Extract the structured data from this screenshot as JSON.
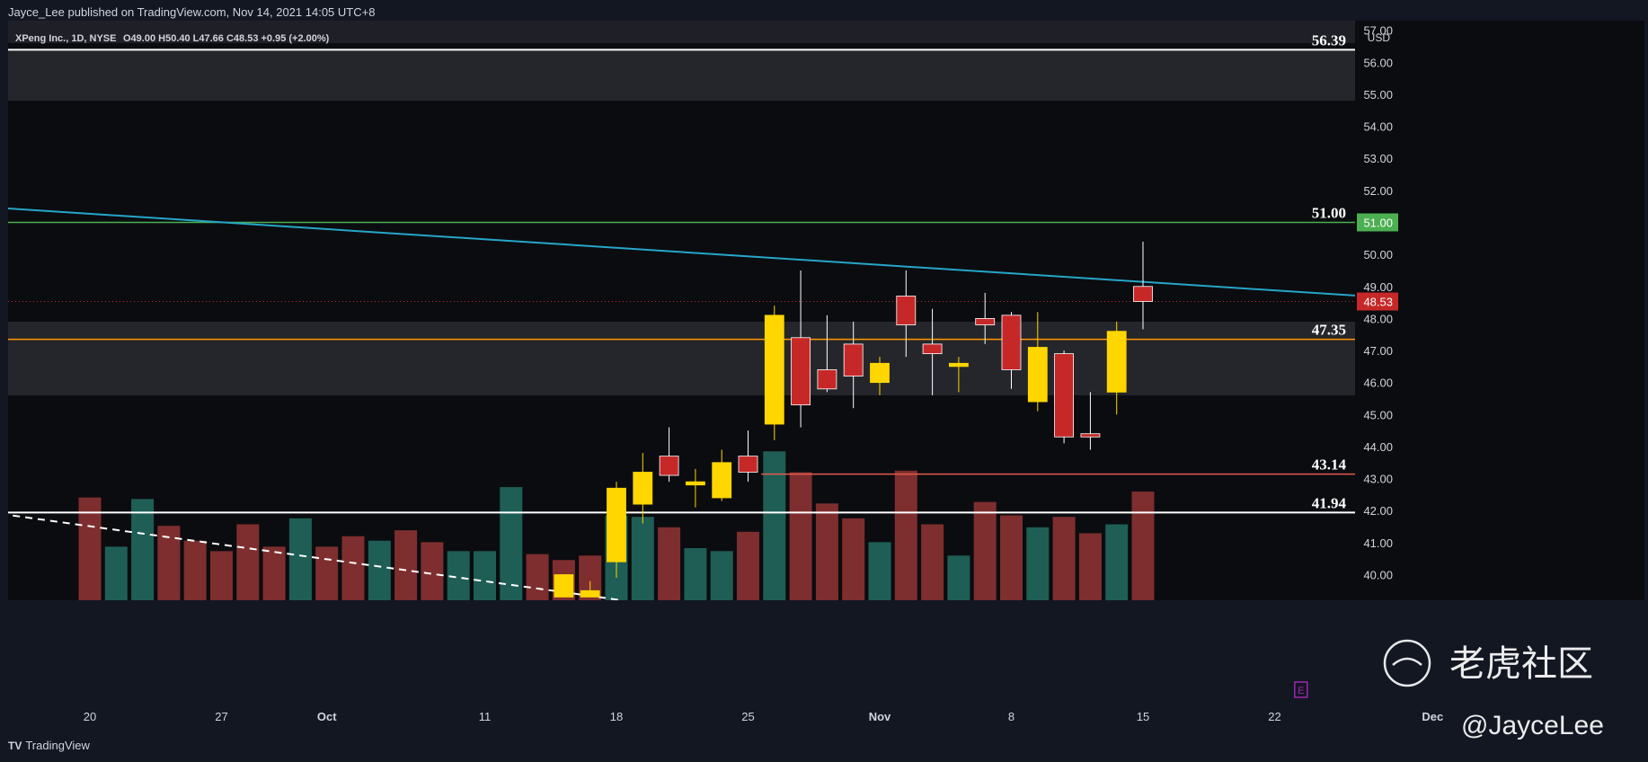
{
  "header": {
    "published": "Jayce_Lee published on TradingView.com, Nov 14, 2021 14:05 UTC+8"
  },
  "footer": {
    "brand": "TradingView",
    "logo_icon": "tradingview-logo-icon"
  },
  "colors": {
    "bull": "#ffd600",
    "bear": "#c62828",
    "vol_up": "#1e5e55",
    "vol_down": "#7e2e2e",
    "trend": "#26a6c8",
    "green_level": "#4caf50",
    "orange_level": "#ff9800",
    "red_level": "#e55b4d",
    "white_level": "#ffffff"
  },
  "watermark": {
    "brand": "老虎社区",
    "user": "@JayceLee"
  },
  "chart_data": {
    "type": "candlestick",
    "title": "XPeng Inc., 1D, NYSE",
    "ohlc_readout": "O49.00 H50.40 L47.66 C48.53 +0.95 (+2.00%)",
    "currency": "USD",
    "ylim": [
      39.2,
      57.3
    ],
    "y_ticks": [
      40,
      41,
      42,
      43,
      44,
      45,
      46,
      47,
      48,
      49,
      50,
      51,
      52,
      53,
      54,
      55,
      56,
      57
    ],
    "x_labels": [
      {
        "label": "20",
        "i": 0
      },
      {
        "label": "27",
        "i": 5
      },
      {
        "label": "Oct",
        "i": 9
      },
      {
        "label": "11",
        "i": 15
      },
      {
        "label": "18",
        "i": 20
      },
      {
        "label": "25",
        "i": 25
      },
      {
        "label": "Nov",
        "i": 30
      },
      {
        "label": "8",
        "i": 35
      },
      {
        "label": "15",
        "i": 40
      },
      {
        "label": "22",
        "i": 45
      },
      {
        "label": "Dec",
        "i": 51
      }
    ],
    "candles": [
      {
        "i": 20,
        "o": 40.4,
        "h": 42.9,
        "l": 39.9,
        "c": 42.7
      },
      {
        "i": 21,
        "o": 42.2,
        "h": 43.8,
        "l": 41.6,
        "c": 43.2
      },
      {
        "i": 22,
        "o": 43.7,
        "h": 44.6,
        "l": 42.9,
        "c": 43.1
      },
      {
        "i": 23,
        "o": 42.8,
        "h": 43.3,
        "l": 42.1,
        "c": 42.9
      },
      {
        "i": 24,
        "o": 42.4,
        "h": 43.9,
        "l": 42.3,
        "c": 43.5
      },
      {
        "i": 25,
        "o": 43.7,
        "h": 44.5,
        "l": 42.9,
        "c": 43.2
      },
      {
        "i": 26,
        "o": 44.7,
        "h": 48.4,
        "l": 44.2,
        "c": 48.1
      },
      {
        "i": 27,
        "o": 47.4,
        "h": 49.5,
        "l": 44.6,
        "c": 45.3
      },
      {
        "i": 28,
        "o": 46.4,
        "h": 48.1,
        "l": 45.7,
        "c": 45.8
      },
      {
        "i": 29,
        "o": 47.2,
        "h": 47.9,
        "l": 45.2,
        "c": 46.2
      },
      {
        "i": 30,
        "o": 46.0,
        "h": 46.8,
        "l": 45.6,
        "c": 46.6
      },
      {
        "i": 31,
        "o": 48.7,
        "h": 49.5,
        "l": 46.8,
        "c": 47.8
      },
      {
        "i": 32,
        "o": 47.2,
        "h": 48.3,
        "l": 45.6,
        "c": 46.9
      },
      {
        "i": 33,
        "o": 46.5,
        "h": 46.8,
        "l": 45.7,
        "c": 46.6
      },
      {
        "i": 34,
        "o": 48.0,
        "h": 48.8,
        "l": 47.2,
        "c": 47.8
      },
      {
        "i": 35,
        "o": 48.1,
        "h": 48.2,
        "l": 45.8,
        "c": 46.4
      },
      {
        "i": 36,
        "o": 45.4,
        "h": 48.2,
        "l": 45.1,
        "c": 47.1
      },
      {
        "i": 37,
        "o": 46.9,
        "h": 47.0,
        "l": 44.1,
        "c": 44.3
      },
      {
        "i": 38,
        "o": 44.4,
        "h": 45.7,
        "l": 43.9,
        "c": 44.3
      },
      {
        "i": 39,
        "o": 45.7,
        "h": 47.9,
        "l": 45.0,
        "c": 47.6
      },
      {
        "i": 40,
        "o": 49.0,
        "h": 50.4,
        "l": 47.66,
        "c": 48.53
      }
    ],
    "partial_candles": [
      {
        "i": 18,
        "o": 39.3,
        "h": 40.0,
        "l": 39.3,
        "c": 40.0
      },
      {
        "i": 19,
        "o": 39.3,
        "h": 39.8,
        "l": 39.3,
        "c": 39.5
      }
    ],
    "volume": [
      {
        "i": 0,
        "v": 0.69,
        "up": false
      },
      {
        "i": 1,
        "v": 0.36,
        "up": true
      },
      {
        "i": 2,
        "v": 0.68,
        "up": true
      },
      {
        "i": 3,
        "v": 0.5,
        "up": false
      },
      {
        "i": 4,
        "v": 0.4,
        "up": false
      },
      {
        "i": 5,
        "v": 0.33,
        "up": false
      },
      {
        "i": 6,
        "v": 0.51,
        "up": false
      },
      {
        "i": 7,
        "v": 0.36,
        "up": false
      },
      {
        "i": 8,
        "v": 0.55,
        "up": true
      },
      {
        "i": 9,
        "v": 0.36,
        "up": false
      },
      {
        "i": 10,
        "v": 0.43,
        "up": false
      },
      {
        "i": 11,
        "v": 0.4,
        "up": true
      },
      {
        "i": 12,
        "v": 0.47,
        "up": false
      },
      {
        "i": 13,
        "v": 0.39,
        "up": false
      },
      {
        "i": 14,
        "v": 0.33,
        "up": true
      },
      {
        "i": 15,
        "v": 0.33,
        "up": true
      },
      {
        "i": 16,
        "v": 0.76,
        "up": true
      },
      {
        "i": 17,
        "v": 0.31,
        "up": false
      },
      {
        "i": 18,
        "v": 0.27,
        "up": false
      },
      {
        "i": 19,
        "v": 0.3,
        "up": false
      },
      {
        "i": 20,
        "v": 0.57,
        "up": true
      },
      {
        "i": 21,
        "v": 0.56,
        "up": true
      },
      {
        "i": 22,
        "v": 0.49,
        "up": false
      },
      {
        "i": 23,
        "v": 0.35,
        "up": true
      },
      {
        "i": 24,
        "v": 0.33,
        "up": true
      },
      {
        "i": 25,
        "v": 0.46,
        "up": false
      },
      {
        "i": 26,
        "v": 1.0,
        "up": true
      },
      {
        "i": 27,
        "v": 0.86,
        "up": false
      },
      {
        "i": 28,
        "v": 0.65,
        "up": false
      },
      {
        "i": 29,
        "v": 0.55,
        "up": false
      },
      {
        "i": 30,
        "v": 0.39,
        "up": true
      },
      {
        "i": 31,
        "v": 0.87,
        "up": false
      },
      {
        "i": 32,
        "v": 0.51,
        "up": false
      },
      {
        "i": 33,
        "v": 0.3,
        "up": true
      },
      {
        "i": 34,
        "v": 0.66,
        "up": false
      },
      {
        "i": 35,
        "v": 0.57,
        "up": false
      },
      {
        "i": 36,
        "v": 0.49,
        "up": true
      },
      {
        "i": 37,
        "v": 0.56,
        "up": false
      },
      {
        "i": 38,
        "v": 0.45,
        "up": false
      },
      {
        "i": 39,
        "v": 0.51,
        "up": true
      },
      {
        "i": 40,
        "v": 0.73,
        "up": false
      }
    ],
    "levels": [
      {
        "price": 56.39,
        "label": "56.39",
        "color": "#ffffff"
      },
      {
        "price": 51.0,
        "label": "51.00",
        "color": "#4caf50"
      },
      {
        "price": 47.35,
        "label": "47.35",
        "color": "#ff9800"
      },
      {
        "price": 43.14,
        "label": "43.14",
        "color": "#e55b4d"
      },
      {
        "price": 41.94,
        "label": "41.94",
        "color": "#ffffff"
      }
    ],
    "zones": [
      {
        "from": 54.8,
        "to": 56.4
      },
      {
        "from": 45.6,
        "to": 47.9
      }
    ],
    "trendline": {
      "from": {
        "i": -3.4,
        "p": 51.45
      },
      "to": {
        "i": 56.8,
        "p": 48.25
      }
    },
    "dashed_trendline": {
      "from": {
        "i": -3.4,
        "p": 41.9
      },
      "to": {
        "i": 20.2,
        "p": 39.2
      }
    },
    "price_badges": [
      {
        "label": "51.00",
        "price": 51.0,
        "color": "#4caf50"
      },
      {
        "label": "48.53",
        "price": 48.53,
        "color": "#c62828"
      }
    ],
    "current_price": 48.53,
    "earnings_marker": {
      "label": "E",
      "i": 46
    }
  }
}
